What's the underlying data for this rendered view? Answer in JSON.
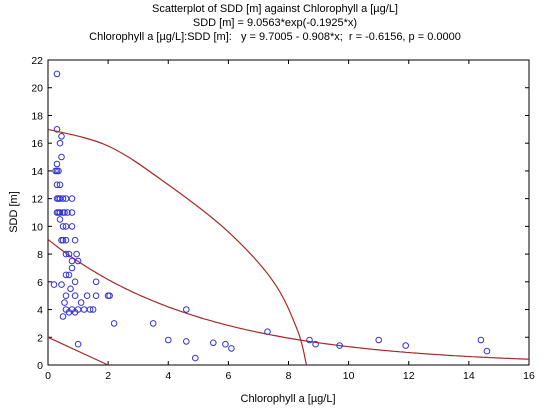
{
  "chart_data": {
    "type": "scatter",
    "title": "Scatterplot of SDD [m] against Chlorophyll a [µg/L]",
    "subtitle_lines": [
      "SDD [m] = 9.0563*exp(-0.1925*x)",
      "Chlorophyll a [µg/L]:SDD [m]:   y = 9.7005 - 0.908*x;  r = -0.6156, p = 0.0000"
    ],
    "xlabel": "Chlorophyll a [µg/L]",
    "ylabel": "SDD [m]",
    "xlim": [
      0,
      16
    ],
    "ylim": [
      0,
      22
    ],
    "xticks": [
      0,
      2,
      4,
      6,
      8,
      10,
      12,
      14,
      16
    ],
    "yticks": [
      0,
      2,
      4,
      6,
      8,
      10,
      12,
      14,
      16,
      18,
      20,
      22
    ],
    "grid": false,
    "colors": {
      "points": "#3333cc",
      "curves": "#a52a2a",
      "axes": "#000000",
      "background": "#ffffff"
    },
    "exp_fit": {
      "a": 9.0563,
      "b": -0.1925
    },
    "confidence_band_lines": [
      {
        "name": "",
        "points": [
          [
            0,
            2.0
          ],
          [
            2,
            0
          ]
        ]
      }
    ],
    "ellipse": {
      "points": [
        [
          0,
          17.0
        ],
        [
          2,
          15.8
        ],
        [
          4,
          13.0
        ],
        [
          6,
          9.6
        ],
        [
          7.5,
          6.0
        ],
        [
          8.3,
          2.5
        ],
        [
          8.6,
          0
        ]
      ]
    },
    "points": [
      [
        0.3,
        21.0
      ],
      [
        0.3,
        17.0
      ],
      [
        0.45,
        16.5
      ],
      [
        0.4,
        16.0
      ],
      [
        0.45,
        15.0
      ],
      [
        0.3,
        14.5
      ],
      [
        0.25,
        14.0
      ],
      [
        0.3,
        14.0
      ],
      [
        0.35,
        14.0
      ],
      [
        0.4,
        13.0
      ],
      [
        0.3,
        13.0
      ],
      [
        0.4,
        12.0
      ],
      [
        0.3,
        12.0
      ],
      [
        0.35,
        12.0
      ],
      [
        0.5,
        12.0
      ],
      [
        0.6,
        12.0
      ],
      [
        0.8,
        12.0
      ],
      [
        0.3,
        11.0
      ],
      [
        0.35,
        11.0
      ],
      [
        0.4,
        11.0
      ],
      [
        0.5,
        11.0
      ],
      [
        0.55,
        11.0
      ],
      [
        0.65,
        11.0
      ],
      [
        0.8,
        11.0
      ],
      [
        0.4,
        10.5
      ],
      [
        0.5,
        10.0
      ],
      [
        0.6,
        10.0
      ],
      [
        0.8,
        10.0
      ],
      [
        0.45,
        9.0
      ],
      [
        0.5,
        9.0
      ],
      [
        0.6,
        9.0
      ],
      [
        0.9,
        9.0
      ],
      [
        0.6,
        8.0
      ],
      [
        0.7,
        8.0
      ],
      [
        0.95,
        8.0
      ],
      [
        0.8,
        7.5
      ],
      [
        1.0,
        7.5
      ],
      [
        0.8,
        7.0
      ],
      [
        0.6,
        6.5
      ],
      [
        0.7,
        6.5
      ],
      [
        0.9,
        6.0
      ],
      [
        0.2,
        5.8
      ],
      [
        0.45,
        5.8
      ],
      [
        0.75,
        5.5
      ],
      [
        0.6,
        5.0
      ],
      [
        0.9,
        5.0
      ],
      [
        1.3,
        5.0
      ],
      [
        1.6,
        5.0
      ],
      [
        2.0,
        5.0
      ],
      [
        2.05,
        5.0
      ],
      [
        0.55,
        4.5
      ],
      [
        1.1,
        4.5
      ],
      [
        0.6,
        4.0
      ],
      [
        0.8,
        4.0
      ],
      [
        1.0,
        4.0
      ],
      [
        1.2,
        4.0
      ],
      [
        1.4,
        4.0
      ],
      [
        1.5,
        4.0
      ],
      [
        0.5,
        3.5
      ],
      [
        0.7,
        3.8
      ],
      [
        0.9,
        3.8
      ],
      [
        1.6,
        6.0
      ],
      [
        1.0,
        1.5
      ],
      [
        2.2,
        3.0
      ],
      [
        3.5,
        3.0
      ],
      [
        4.6,
        4.0
      ],
      [
        4.0,
        1.8
      ],
      [
        4.6,
        1.7
      ],
      [
        5.5,
        1.6
      ],
      [
        5.9,
        1.5
      ],
      [
        6.1,
        1.2
      ],
      [
        4.9,
        0.5
      ],
      [
        7.3,
        2.4
      ],
      [
        8.7,
        1.8
      ],
      [
        8.9,
        1.5
      ],
      [
        9.7,
        1.4
      ],
      [
        11.0,
        1.8
      ],
      [
        11.9,
        1.4
      ],
      [
        14.4,
        1.8
      ],
      [
        14.6,
        1.0
      ]
    ]
  }
}
